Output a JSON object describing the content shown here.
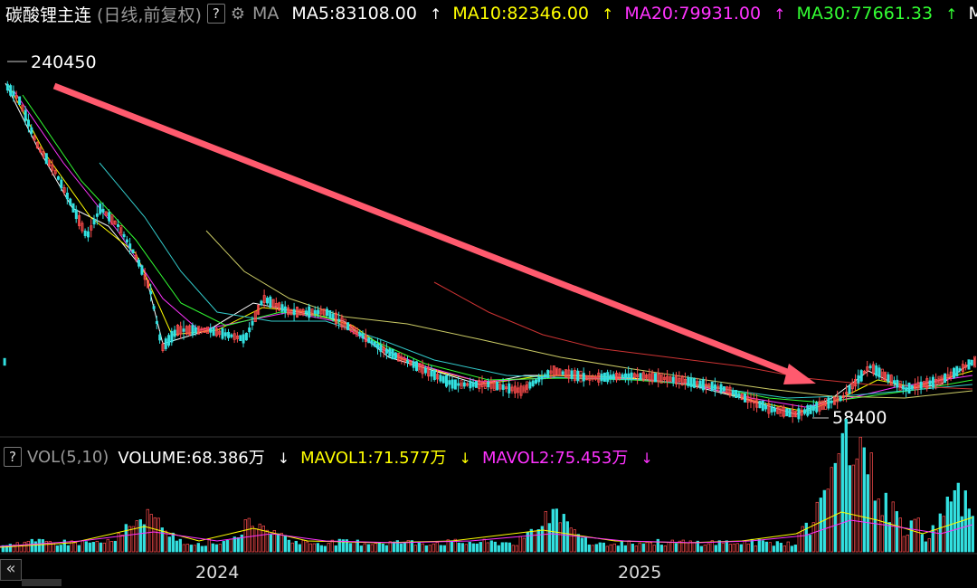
{
  "header": {
    "symbol": "碳酸锂主连",
    "period": "(日线,前复权)",
    "help": "?",
    "ma_label": "MA",
    "ma_items": [
      {
        "text": "MA5:83108.00",
        "arrow": "↑",
        "color": "#ffffff"
      },
      {
        "text": "MA10:82346.00",
        "arrow": "↑",
        "color": "#ffff00"
      },
      {
        "text": "MA20:79931.00",
        "arrow": "↑",
        "color": "#ff33ff"
      },
      {
        "text": "MA30:77661.33",
        "arrow": "↑",
        "color": "#33ff33"
      },
      {
        "text": "MA",
        "arrow": "",
        "color": "#ffffff"
      }
    ]
  },
  "volume_header": {
    "help": "?",
    "label": "VOL(5,10)",
    "items": [
      {
        "text": "VOLUME:68.386万",
        "arrow": "↓",
        "color": "#ffffff"
      },
      {
        "text": "MAVOL1:71.577万",
        "arrow": "↓",
        "color": "#ffff00"
      },
      {
        "text": "MAVOL2:75.453万",
        "arrow": "↓",
        "color": "#ff33ff"
      }
    ]
  },
  "nav": {
    "scroll_left": "«"
  },
  "chart_data": {
    "type": "candlestick",
    "price_labels": {
      "high": "240450",
      "low": "58400"
    },
    "x_ticks": [
      "2024",
      "2025"
    ],
    "colors": {
      "up": "#ff4d4d",
      "down": "#33e0e0",
      "arrow": "#ff5a6e"
    },
    "close_series": [
      230000,
      210000,
      190000,
      170000,
      145000,
      120000,
      100000,
      110000,
      110000,
      125000,
      112000,
      98000,
      88000,
      82000,
      78000,
      75000,
      73000,
      70000,
      73000,
      76000,
      74000,
      72000,
      73000,
      69000,
      66000,
      63000,
      61000,
      60000,
      59000,
      62000,
      72000,
      80000,
      83108
    ]
  }
}
